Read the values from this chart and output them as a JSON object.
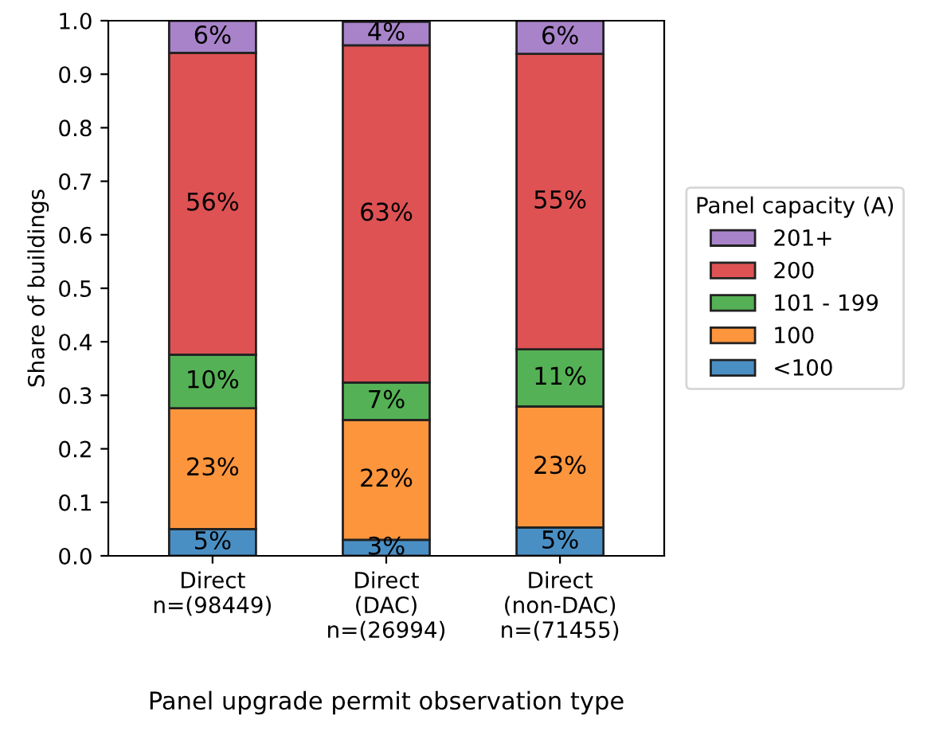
{
  "chart_data": {
    "type": "bar",
    "stacked": true,
    "xlabel": "Panel upgrade permit observation type",
    "ylabel": "Share of buildings",
    "legend_title": "Panel capacity (A)",
    "legend": "right",
    "categories": [
      "Direct\nn=(98449)",
      "Direct\n(DAC)\nn=(26994)",
      "Direct\n(non-DAC)\nn=(71455)"
    ],
    "ylim": [
      0,
      1
    ],
    "yticks": [
      {
        "value": 0,
        "label": "0.0"
      },
      0.1,
      0.2,
      0.3,
      0.4,
      0.5,
      0.6,
      0.7,
      0.8,
      0.9,
      {
        "value": 1,
        "label": "1.0"
      }
    ],
    "series": [
      {
        "name": "<100",
        "color": "#4a8fc4",
        "values": [
          0.05,
          0.03,
          0.053
        ],
        "value_labels": [
          "5%",
          "3%",
          "5%"
        ]
      },
      {
        "name": "100",
        "color": "#fd953d",
        "values": [
          0.226,
          0.224,
          0.226
        ],
        "value_labels": [
          "23%",
          "22%",
          "23%"
        ]
      },
      {
        "name": "101 - 199",
        "color": "#55b155",
        "values": [
          0.1,
          0.07,
          0.107
        ],
        "value_labels": [
          "10%",
          "7%",
          "11%"
        ]
      },
      {
        "name": "200",
        "color": "#de5254",
        "values": [
          0.564,
          0.63,
          0.552
        ],
        "value_labels": [
          "56%",
          "63%",
          "55%"
        ]
      },
      {
        "name": "201+",
        "color": "#a883c9",
        "values": [
          0.06,
          0.044,
          0.062
        ],
        "value_labels": [
          "6%",
          "4%",
          "6%"
        ]
      }
    ]
  }
}
